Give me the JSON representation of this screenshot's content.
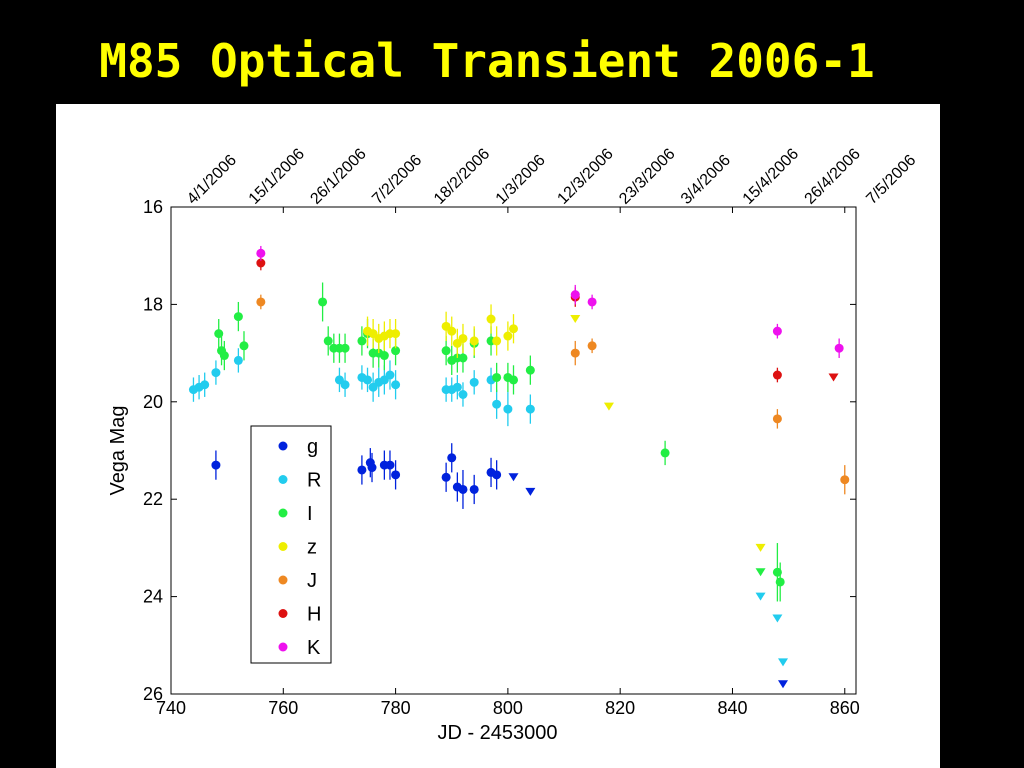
{
  "slide": {
    "title": "M85 Optical Transient 2006-1"
  },
  "chart_data": {
    "type": "scatter",
    "xlabel": "JD - 2453000",
    "ylabel": "Vega Mag",
    "xlim": [
      740,
      862
    ],
    "ylim": [
      16,
      26
    ],
    "y_inverted": true,
    "x_ticks": [
      740,
      760,
      780,
      800,
      820,
      840,
      860
    ],
    "y_ticks": [
      16,
      18,
      20,
      22,
      24,
      26
    ],
    "top_date_ticks": [
      {
        "x": 745,
        "label": "4/1/2006"
      },
      {
        "x": 756,
        "label": "15/1/2006"
      },
      {
        "x": 767,
        "label": "26/1/2006"
      },
      {
        "x": 778,
        "label": "7/2/2006"
      },
      {
        "x": 789,
        "label": "18/2/2006"
      },
      {
        "x": 800,
        "label": "1/3/2006"
      },
      {
        "x": 811,
        "label": "12/3/2006"
      },
      {
        "x": 822,
        "label": "23/3/2006"
      },
      {
        "x": 833,
        "label": "3/4/2006"
      },
      {
        "x": 844,
        "label": "15/4/2006"
      },
      {
        "x": 855,
        "label": "26/4/2006"
      },
      {
        "x": 866,
        "label": "7/5/2006"
      }
    ],
    "legend_position": "lower-left",
    "grid": false,
    "series": [
      {
        "name": "g",
        "color": "#0022dd",
        "points": [
          [
            748,
            21.3,
            0.3
          ],
          [
            774,
            21.4,
            0.3
          ],
          [
            775.5,
            21.25,
            0.3
          ],
          [
            775.8,
            21.35,
            0.3
          ],
          [
            778,
            21.3,
            0.3
          ],
          [
            779,
            21.3,
            0.3
          ],
          [
            780,
            21.5,
            0.3
          ],
          [
            789,
            21.55,
            0.3
          ],
          [
            790,
            21.15,
            0.3
          ],
          [
            791,
            21.75,
            0.3
          ],
          [
            792,
            21.8,
            0.4
          ],
          [
            794,
            21.8,
            0.3
          ],
          [
            797,
            21.45,
            0.3
          ],
          [
            798,
            21.5,
            0.3
          ]
        ],
        "upper_limits": [
          [
            801,
            21.55
          ],
          [
            804,
            21.85
          ],
          [
            849,
            25.8
          ]
        ]
      },
      {
        "name": "R",
        "color": "#22ccee",
        "points": [
          [
            744,
            19.75,
            0.25
          ],
          [
            745,
            19.7,
            0.25
          ],
          [
            746,
            19.65,
            0.25
          ],
          [
            748,
            19.4,
            0.25
          ],
          [
            752,
            19.15,
            0.25
          ],
          [
            770,
            19.55,
            0.25
          ],
          [
            771,
            19.65,
            0.25
          ],
          [
            774,
            19.5,
            0.25
          ],
          [
            775,
            19.55,
            0.25
          ],
          [
            776,
            19.7,
            0.3
          ],
          [
            777,
            19.6,
            0.3
          ],
          [
            778,
            19.55,
            0.3
          ],
          [
            779,
            19.45,
            0.3
          ],
          [
            780,
            19.65,
            0.3
          ],
          [
            789,
            19.75,
            0.25
          ],
          [
            790,
            19.75,
            0.25
          ],
          [
            791,
            19.7,
            0.25
          ],
          [
            792,
            19.85,
            0.25
          ],
          [
            794,
            19.6,
            0.25
          ],
          [
            797,
            19.55,
            0.25
          ],
          [
            798,
            20.05,
            0.3
          ],
          [
            800,
            20.15,
            0.35
          ],
          [
            804,
            20.15,
            0.3
          ]
        ],
        "upper_limits": [
          [
            845,
            24.0
          ],
          [
            848,
            24.45
          ],
          [
            849,
            25.35
          ]
        ]
      },
      {
        "name": "I",
        "color": "#22ee44",
        "points": [
          [
            748.5,
            18.6,
            0.3
          ],
          [
            749,
            18.95,
            0.3
          ],
          [
            749.5,
            19.05,
            0.3
          ],
          [
            752,
            18.25,
            0.3
          ],
          [
            753,
            18.85,
            0.3
          ],
          [
            767,
            17.95,
            0.4
          ],
          [
            768,
            18.75,
            0.3
          ],
          [
            769,
            18.9,
            0.3
          ],
          [
            770,
            18.9,
            0.3
          ],
          [
            771,
            18.9,
            0.3
          ],
          [
            774,
            18.75,
            0.3
          ],
          [
            775,
            18.6,
            0.3
          ],
          [
            776,
            19.0,
            0.3
          ],
          [
            777,
            19.0,
            0.3
          ],
          [
            778,
            19.05,
            0.3
          ],
          [
            780,
            18.95,
            0.3
          ],
          [
            789,
            18.95,
            0.3
          ],
          [
            790,
            19.15,
            0.3
          ],
          [
            791,
            19.1,
            0.3
          ],
          [
            792,
            19.1,
            0.3
          ],
          [
            794,
            18.8,
            0.3
          ],
          [
            797,
            18.75,
            0.3
          ],
          [
            798,
            19.5,
            0.3
          ],
          [
            800,
            19.5,
            0.3
          ],
          [
            801,
            19.55,
            0.3
          ],
          [
            804,
            19.35,
            0.3
          ],
          [
            828,
            21.05,
            0.25
          ],
          [
            848,
            23.5,
            0.6
          ],
          [
            848.5,
            23.7,
            0.4
          ]
        ],
        "upper_limits": [
          [
            845,
            23.5
          ]
        ]
      },
      {
        "name": "z",
        "color": "#eeee00",
        "points": [
          [
            775,
            18.55,
            0.3
          ],
          [
            776,
            18.6,
            0.3
          ],
          [
            777,
            18.7,
            0.3
          ],
          [
            778,
            18.65,
            0.3
          ],
          [
            779,
            18.6,
            0.3
          ],
          [
            780,
            18.6,
            0.3
          ],
          [
            789,
            18.45,
            0.3
          ],
          [
            790,
            18.55,
            0.3
          ],
          [
            791,
            18.8,
            0.3
          ],
          [
            792,
            18.7,
            0.3
          ],
          [
            794,
            18.75,
            0.3
          ],
          [
            797,
            18.3,
            0.3
          ],
          [
            798,
            18.75,
            0.3
          ],
          [
            800,
            18.65,
            0.3
          ],
          [
            801,
            18.5,
            0.3
          ]
        ],
        "upper_limits": [
          [
            812,
            18.3
          ],
          [
            818,
            20.1
          ],
          [
            845,
            23.0
          ]
        ]
      },
      {
        "name": "J",
        "color": "#ee8822",
        "points": [
          [
            756,
            17.95,
            0.15
          ],
          [
            812,
            19.0,
            0.25
          ],
          [
            815,
            18.85,
            0.15
          ],
          [
            848,
            20.35,
            0.2
          ],
          [
            860,
            21.6,
            0.3
          ]
        ],
        "upper_limits": []
      },
      {
        "name": "H",
        "color": "#dd1111",
        "points": [
          [
            756,
            17.15,
            0.15
          ],
          [
            812,
            17.85,
            0.2
          ],
          [
            848,
            19.45,
            0.15
          ]
        ],
        "upper_limits": [
          [
            858,
            19.5
          ]
        ]
      },
      {
        "name": "K",
        "color": "#ee11ee",
        "points": [
          [
            756,
            16.95,
            0.15
          ],
          [
            812,
            17.8,
            0.2
          ],
          [
            815,
            17.95,
            0.15
          ],
          [
            848,
            18.55,
            0.15
          ],
          [
            859,
            18.9,
            0.2
          ]
        ],
        "upper_limits": []
      }
    ]
  }
}
